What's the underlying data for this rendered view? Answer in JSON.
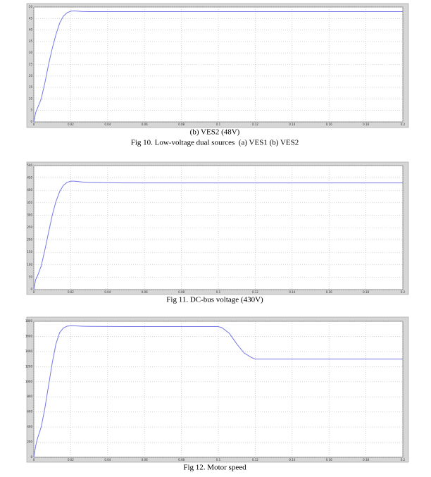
{
  "chart_data": [
    {
      "type": "line",
      "color": "#7676e8",
      "grid": true,
      "x": [
        0,
        0.001,
        0.002,
        0.004,
        0.006,
        0.008,
        0.01,
        0.012,
        0.014,
        0.016,
        0.018,
        0.02,
        0.022,
        0.026,
        0.03,
        0.05,
        0.2
      ],
      "values": [
        0,
        4,
        6,
        10,
        17,
        25,
        32,
        38,
        43,
        46,
        47.5,
        48.2,
        48.3,
        48.1,
        48,
        48,
        48
      ],
      "xlim": [
        0,
        0.2
      ],
      "xticks": [
        0,
        0.02,
        0.04,
        0.06,
        0.08,
        0.1,
        0.12,
        0.14,
        0.16,
        0.18,
        0.2
      ],
      "ylim": [
        0,
        50
      ],
      "yticks": [
        0,
        5,
        10,
        15,
        20,
        25,
        30,
        35,
        40,
        45,
        50
      ]
    },
    {
      "type": "line",
      "color": "#7676e8",
      "grid": true,
      "x": [
        0,
        0.001,
        0.002,
        0.004,
        0.006,
        0.008,
        0.01,
        0.012,
        0.014,
        0.016,
        0.018,
        0.02,
        0.022,
        0.026,
        0.03,
        0.05,
        0.2
      ],
      "values": [
        0,
        40,
        55,
        95,
        160,
        230,
        300,
        355,
        395,
        420,
        432,
        437,
        437,
        434,
        432,
        430,
        430
      ],
      "xlim": [
        0,
        0.2
      ],
      "xticks": [
        0,
        0.02,
        0.04,
        0.06,
        0.08,
        0.1,
        0.12,
        0.14,
        0.16,
        0.18,
        0.2
      ],
      "ylim": [
        0,
        500
      ],
      "yticks": [
        0,
        50,
        100,
        150,
        200,
        250,
        300,
        350,
        400,
        450,
        500
      ]
    },
    {
      "type": "line",
      "color": "#7676e8",
      "grid": true,
      "x": [
        0,
        0.001,
        0.002,
        0.004,
        0.006,
        0.008,
        0.01,
        0.012,
        0.014,
        0.016,
        0.018,
        0.02,
        0.022,
        0.026,
        0.03,
        0.05,
        0.1,
        0.102,
        0.106,
        0.11,
        0.114,
        0.118,
        0.12,
        0.2
      ],
      "values": [
        0,
        150,
        250,
        400,
        650,
        950,
        1250,
        1500,
        1650,
        1710,
        1735,
        1742,
        1740,
        1735,
        1732,
        1730,
        1730,
        1715,
        1640,
        1500,
        1380,
        1320,
        1300,
        1300
      ],
      "xlim": [
        0,
        0.2
      ],
      "xticks": [
        0,
        0.02,
        0.04,
        0.06,
        0.08,
        0.1,
        0.12,
        0.14,
        0.16,
        0.18,
        0.2
      ],
      "ylim": [
        0,
        1800
      ],
      "yticks": [
        0,
        200,
        400,
        600,
        800,
        1000,
        1200,
        1400,
        1600,
        1800
      ]
    }
  ],
  "captions": [
    "(b) VES2 (48V)",
    "Fig 10. Low-voltage dual sources  (a) VES1 (b) VES2",
    "Fig 11. DC-bus voltage (430V)",
    "Fig 12. Motor speed"
  ]
}
